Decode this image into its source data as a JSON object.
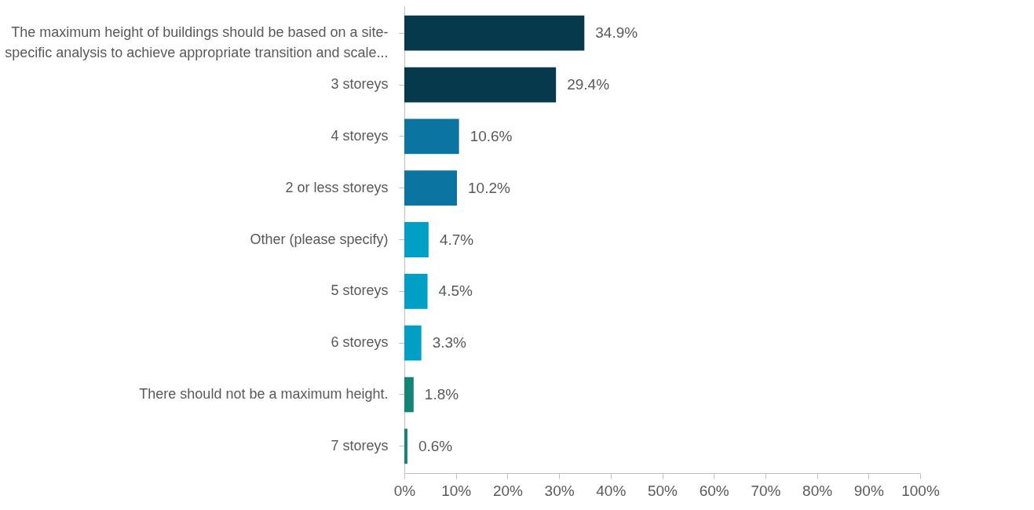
{
  "chart_data": {
    "type": "bar",
    "orientation": "horizontal",
    "categories": [
      "The maximum height of buildings should be based on a site-specific analysis to achieve appropriate transition and scale...",
      "3 storeys",
      "4 storeys",
      "2 or less storeys",
      "Other (please specify)",
      "5 storeys",
      "6 storeys",
      "There should not be a maximum height.",
      "7 storeys"
    ],
    "values": [
      34.9,
      29.4,
      10.6,
      10.2,
      4.7,
      4.5,
      3.3,
      1.8,
      0.6
    ],
    "value_labels": [
      "34.9%",
      "29.4%",
      "10.6%",
      "10.2%",
      "4.7%",
      "4.5%",
      "3.3%",
      "1.8%",
      "0.6%"
    ],
    "colors": [
      "#07394d",
      "#07394d",
      "#0b74a0",
      "#0b74a0",
      "#00a0c6",
      "#00a0c6",
      "#00a0c6",
      "#138577",
      "#138577"
    ],
    "xlim": [
      0,
      100
    ],
    "xticks": [
      {
        "value": 0,
        "label": "0%"
      },
      {
        "value": 10,
        "label": "10%"
      },
      {
        "value": 20,
        "label": "20%"
      },
      {
        "value": 30,
        "label": "30%"
      },
      {
        "value": 40,
        "label": "40%"
      },
      {
        "value": 50,
        "label": "50%"
      },
      {
        "value": 60,
        "label": "60%"
      },
      {
        "value": 70,
        "label": "70%"
      },
      {
        "value": 80,
        "label": "80%"
      },
      {
        "value": 90,
        "label": "90%"
      },
      {
        "value": 100,
        "label": "100%"
      }
    ],
    "grid": false
  }
}
